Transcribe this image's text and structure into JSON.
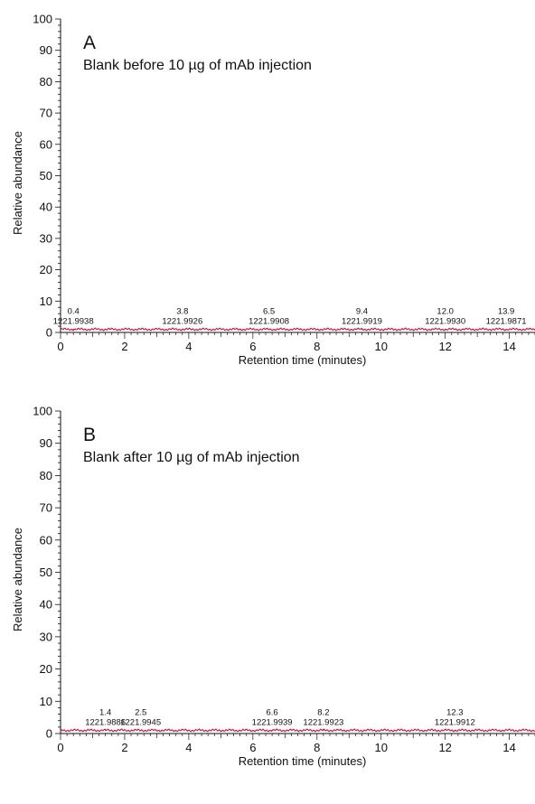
{
  "chart_data": [
    {
      "type": "line",
      "panel_label": "A",
      "caption": "Blank before 10 µg of mAb injection",
      "xlabel": "Retention time (minutes)",
      "ylabel": "Relative abundance",
      "xlim": [
        0,
        14.8
      ],
      "ylim": [
        0,
        100
      ],
      "x_ticks": [
        "0",
        "2",
        "4",
        "6",
        "8",
        "10",
        "12",
        "14"
      ],
      "y_ticks": [
        "0",
        "10",
        "20",
        "30",
        "40",
        "50",
        "60",
        "70",
        "80",
        "90",
        "100"
      ],
      "trace_color": "#d0103a",
      "baseline_level": 1,
      "peaks": [
        {
          "rt": "0.4",
          "mz": "1221.9938",
          "x": 0.4,
          "y": 1
        },
        {
          "rt": "3.8",
          "mz": "1221.9926",
          "x": 3.8,
          "y": 1
        },
        {
          "rt": "6.5",
          "mz": "1221.9908",
          "x": 6.5,
          "y": 1
        },
        {
          "rt": "9.4",
          "mz": "1221.9919",
          "x": 9.4,
          "y": 1
        },
        {
          "rt": "12.0",
          "mz": "1221.9930",
          "x": 12.0,
          "y": 1
        },
        {
          "rt": "13.9",
          "mz": "1221.9871",
          "x": 13.9,
          "y": 1
        }
      ]
    },
    {
      "type": "line",
      "panel_label": "B",
      "caption": "Blank after 10 µg of mAb injection",
      "xlabel": "Retention time (minutes)",
      "ylabel": "Relative abundance",
      "xlim": [
        0,
        14.8
      ],
      "ylim": [
        0,
        100
      ],
      "x_ticks": [
        "0",
        "2",
        "4",
        "6",
        "8",
        "10",
        "12",
        "14"
      ],
      "y_ticks": [
        "0",
        "10",
        "20",
        "30",
        "40",
        "50",
        "60",
        "70",
        "80",
        "90",
        "100"
      ],
      "trace_color": "#d0103a",
      "baseline_level": 1,
      "peaks": [
        {
          "rt": "1.4",
          "mz": "1221.9886",
          "x": 1.4,
          "y": 1
        },
        {
          "rt": "2.5",
          "mz": "1221.9945",
          "x": 2.5,
          "y": 1
        },
        {
          "rt": "6.6",
          "mz": "1221.9939",
          "x": 6.6,
          "y": 1
        },
        {
          "rt": "8.2",
          "mz": "1221.9923",
          "x": 8.2,
          "y": 1
        },
        {
          "rt": "12.3",
          "mz": "1221.9912",
          "x": 12.3,
          "y": 1
        }
      ]
    }
  ]
}
